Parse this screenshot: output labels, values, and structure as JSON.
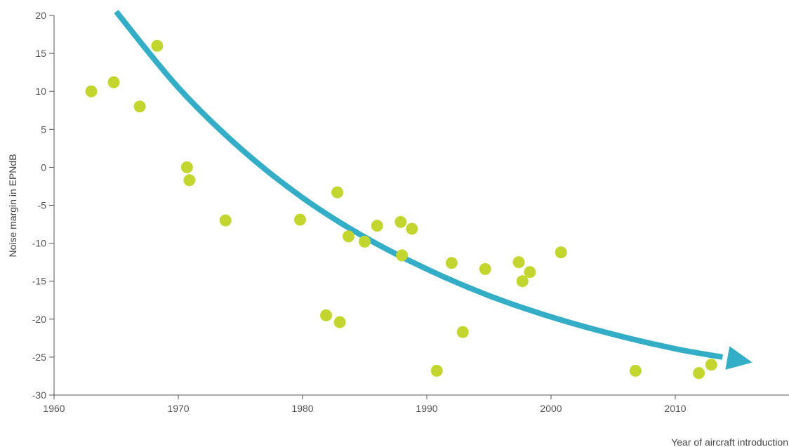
{
  "chart_data": {
    "type": "scatter",
    "title": "",
    "xlabel": "Year of aircraft introduction",
    "ylabel": "Noise margin in EPNdB",
    "xlim": [
      1960,
      2020
    ],
    "ylim": [
      -30,
      20
    ],
    "x_ticks": [
      1960,
      1970,
      1980,
      1990,
      2000,
      2010
    ],
    "y_ticks": [
      20,
      15,
      10,
      5,
      0,
      -5,
      -10,
      -15,
      -20,
      -25,
      -30
    ],
    "colors": {
      "points": "#c2d62f",
      "trend": "#33aec6",
      "axis": "#555555"
    },
    "grid": false,
    "legend": "none",
    "points": [
      {
        "x": 1963.0,
        "y": 10.0
      },
      {
        "x": 1964.8,
        "y": 11.2
      },
      {
        "x": 1966.9,
        "y": 8.0
      },
      {
        "x": 1968.3,
        "y": 16.0
      },
      {
        "x": 1970.7,
        "y": 0.0
      },
      {
        "x": 1970.9,
        "y": -1.7
      },
      {
        "x": 1973.8,
        "y": -7.0
      },
      {
        "x": 1979.8,
        "y": -6.9
      },
      {
        "x": 1981.9,
        "y": -19.5
      },
      {
        "x": 1982.8,
        "y": -3.3
      },
      {
        "x": 1983.0,
        "y": -20.4
      },
      {
        "x": 1983.7,
        "y": -9.1
      },
      {
        "x": 1985.0,
        "y": -9.8
      },
      {
        "x": 1986.0,
        "y": -7.7
      },
      {
        "x": 1987.9,
        "y": -7.2
      },
      {
        "x": 1988.0,
        "y": -11.6
      },
      {
        "x": 1988.8,
        "y": -8.1
      },
      {
        "x": 1990.8,
        "y": -26.8
      },
      {
        "x": 1992.0,
        "y": -12.6
      },
      {
        "x": 1992.9,
        "y": -21.7
      },
      {
        "x": 1994.7,
        "y": -13.4
      },
      {
        "x": 1997.4,
        "y": -12.5
      },
      {
        "x": 1997.7,
        "y": -15.0
      },
      {
        "x": 1998.3,
        "y": -13.8
      },
      {
        "x": 2000.8,
        "y": -11.2
      },
      {
        "x": 2006.8,
        "y": -26.8
      },
      {
        "x": 2011.9,
        "y": -27.1
      },
      {
        "x": 2012.9,
        "y": -26.0
      }
    ],
    "trend_arrow": {
      "points": [
        {
          "x": 1965.0,
          "y": 20.5
        },
        {
          "x": 1970.0,
          "y": 10.5
        },
        {
          "x": 1975.0,
          "y": 2.5
        },
        {
          "x": 1980.0,
          "y": -4.0
        },
        {
          "x": 1985.0,
          "y": -9.2
        },
        {
          "x": 1990.0,
          "y": -13.4
        },
        {
          "x": 1995.0,
          "y": -16.9
        },
        {
          "x": 2000.0,
          "y": -19.7
        },
        {
          "x": 2005.0,
          "y": -22.0
        },
        {
          "x": 2010.0,
          "y": -23.9
        },
        {
          "x": 2013.8,
          "y": -25.0
        }
      ],
      "head": {
        "x": 2016.2,
        "y": -25.7
      }
    }
  }
}
